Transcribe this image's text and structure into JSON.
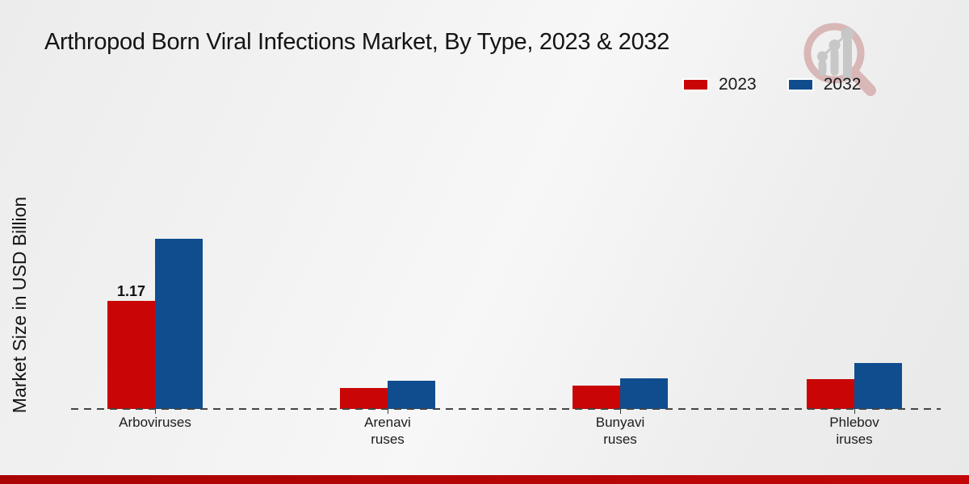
{
  "page": {
    "title": "Arthropod Born Viral Infections Market, By Type, 2023 & 2032",
    "y_axis_label": "Market Size in USD Billion"
  },
  "legend": {
    "position": "top-right",
    "items": [
      {
        "label": "2023",
        "color": "#c90505"
      },
      {
        "label": "2032",
        "color": "#104d8e"
      }
    ]
  },
  "logo": {
    "icon": "magnifier-growth-chart-logo",
    "ring_color": "#d9b7b7",
    "bars_color": "#c7c7c7"
  },
  "footer": {
    "bar_color": "#b30505"
  },
  "chart_data": {
    "type": "bar",
    "title": "Arthropod Born Viral Infections Market, By Type, 2023 & 2032",
    "xlabel": "",
    "ylabel": "Market Size in USD Billion",
    "categories": [
      "Arboviruses",
      "Arenaviruses",
      "Bunyaviruses",
      "Phleboviruses"
    ],
    "category_label_lines": [
      [
        "Arboviruses"
      ],
      [
        "Arenavi",
        "ruses"
      ],
      [
        "Bunyavi",
        "ruses"
      ],
      [
        "Phlebov",
        "iruses"
      ]
    ],
    "series": [
      {
        "name": "2023",
        "color": "#c90505",
        "values": [
          1.17,
          0.23,
          0.25,
          0.32
        ]
      },
      {
        "name": "2032",
        "color": "#104d8e",
        "values": [
          1.84,
          0.31,
          0.33,
          0.5
        ]
      }
    ],
    "value_labels": [
      {
        "category": "Arboviruses",
        "series": "2023",
        "text": "1.17"
      }
    ],
    "baseline_value": 0,
    "ylim": [
      0,
      2
    ],
    "grid": false,
    "legend_position": "top-right"
  }
}
